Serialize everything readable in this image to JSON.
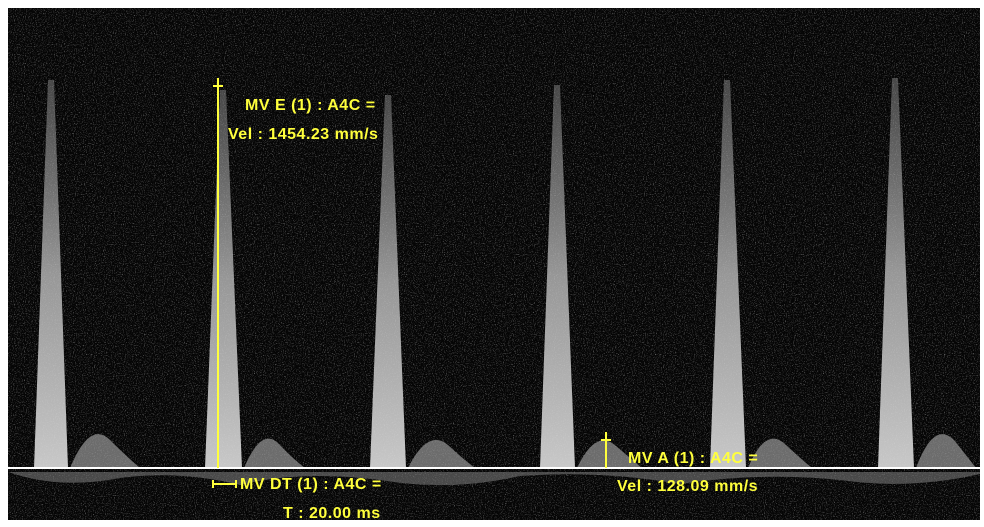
{
  "annotations": [
    {
      "label": "MV E (1) : A4C =",
      "value": "Vel : 1454.23 mm/s"
    },
    {
      "label": "MV DT (1) : A4C =",
      "value": "T : 20.00 ms"
    },
    {
      "label": "MV A (1) : A4C =",
      "value": "Vel : 128.09 mm/s"
    }
  ]
}
